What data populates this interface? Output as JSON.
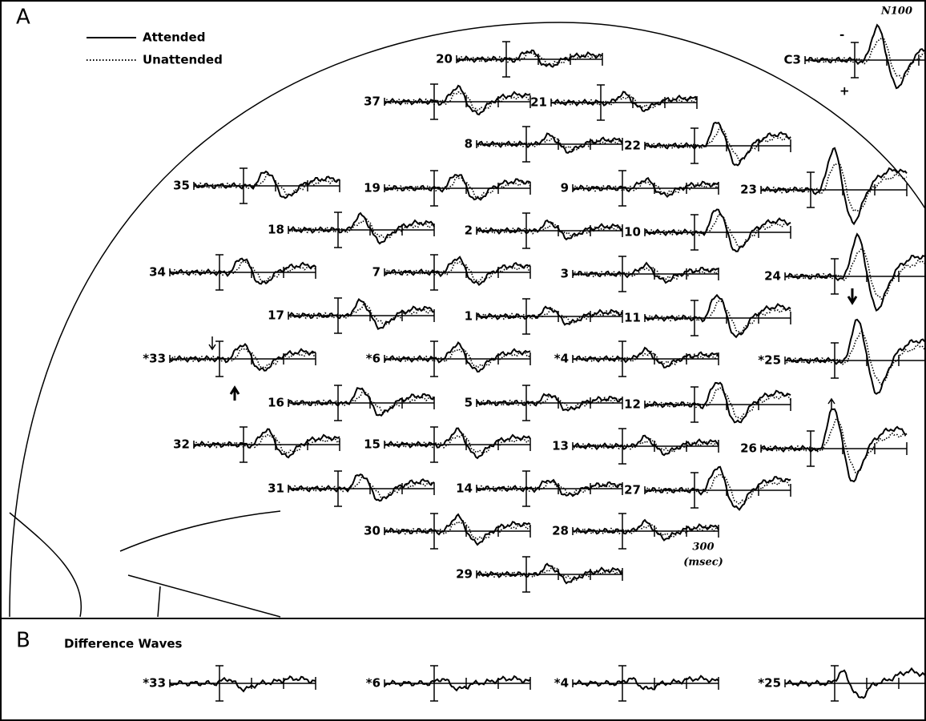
{
  "panel_a": {
    "label": "A",
    "legend": {
      "attended": "Attended",
      "unattended": "Unattended"
    },
    "electrodes": [
      "20",
      "37",
      "21",
      "8",
      "22",
      "35",
      "19",
      "9",
      "23",
      "18",
      "2",
      "10",
      "34",
      "7",
      "3",
      "24",
      "17",
      "1",
      "11",
      "*33",
      "*6",
      "*4",
      "*25",
      "16",
      "5",
      "12",
      "32",
      "15",
      "13",
      "26",
      "31",
      "14",
      "27",
      "30",
      "28",
      "29"
    ],
    "reference": {
      "label": "C3",
      "peak": "N100",
      "minus": "-",
      "plus": "+"
    },
    "time_label": "300",
    "time_unit": "(msec)"
  },
  "panel_b": {
    "label": "B",
    "title": "Difference Waves",
    "electrodes": [
      "*33",
      "*6",
      "*4",
      "*25"
    ]
  }
}
